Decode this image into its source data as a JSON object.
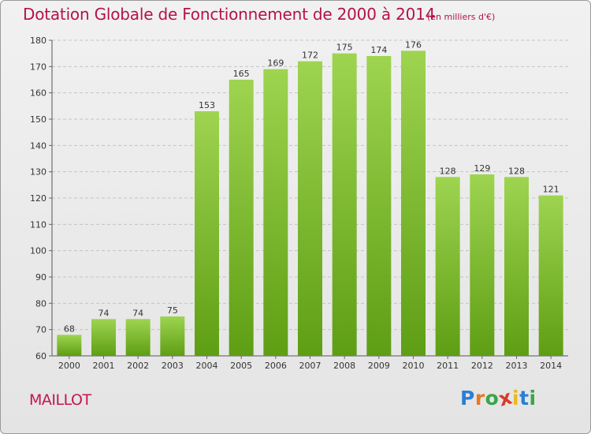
{
  "header": {
    "title": "Dotation Globale de Fonctionnement de 2000 à 2014",
    "subtitle": "(en milliers d'€)"
  },
  "footer": {
    "commune": "MAILLOT",
    "logo_letters": [
      "P",
      "r",
      "o",
      "x",
      "i",
      "t",
      "i"
    ],
    "logo_colors": [
      "#2a7fd4",
      "#e87a1e",
      "#3aa54a",
      "#d93a2b",
      "#e8b91e",
      "#2a7fd4",
      "#3aa54a"
    ]
  },
  "colors": {
    "bar_top": "#9ed450",
    "bar_bottom": "#5e9e14",
    "grid": "#c4c4c4",
    "text": "#333333",
    "accent": "#b5124a"
  },
  "chart_data": {
    "type": "bar",
    "title": "Dotation Globale de Fonctionnement de 2000 à 2014",
    "subtitle": "(en milliers d'€)",
    "xlabel": "",
    "ylabel": "",
    "categories": [
      "2000",
      "2001",
      "2002",
      "2003",
      "2004",
      "2005",
      "2006",
      "2007",
      "2008",
      "2009",
      "2010",
      "2011",
      "2012",
      "2013",
      "2014"
    ],
    "values": [
      68,
      74,
      74,
      75,
      153,
      165,
      169,
      172,
      175,
      174,
      176,
      128,
      129,
      128,
      121
    ],
    "ylim": [
      60,
      180
    ],
    "yticks": [
      60,
      70,
      80,
      90,
      100,
      110,
      120,
      130,
      140,
      150,
      160,
      170,
      180
    ],
    "grid": true,
    "legend": "none"
  }
}
